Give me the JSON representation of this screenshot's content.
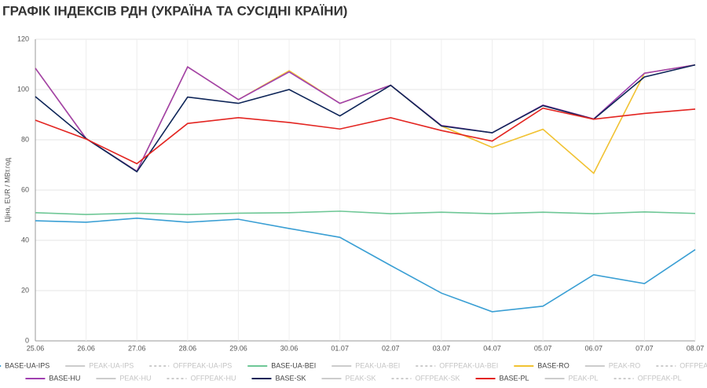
{
  "chart_data": {
    "type": "line",
    "title": "ГРАФІК ІНДЕКСІВ РДН (УКРАЇНА ТА СУСІДНІ КРАЇНИ)",
    "y_label": "Ціна, EUR / МВт.год",
    "categories": [
      "25.06",
      "26.06",
      "27.06",
      "28.06",
      "29.06",
      "30.06",
      "01.07",
      "02.07",
      "03.07",
      "04.07",
      "05.07",
      "06.07",
      "07.07",
      "08.07"
    ],
    "ylim": [
      0,
      120
    ],
    "yticks": [
      0,
      20,
      40,
      60,
      80,
      100,
      120
    ],
    "grid": true,
    "series": [
      {
        "name": "BASE-UA-IPS",
        "color": "#3a9fd4",
        "values": [
          47.8,
          47.2,
          48.8,
          47.2,
          48.4,
          44.7,
          41.2,
          30,
          19,
          11.6,
          13.8,
          26.3,
          22.8,
          36.3
        ]
      },
      {
        "name": "PEAK-UA-IPS",
        "color": "#cccccc",
        "hidden": true,
        "dash": false,
        "values": [
          null,
          null,
          null,
          null,
          null,
          null,
          null,
          null,
          null,
          null,
          null,
          null,
          null,
          null
        ]
      },
      {
        "name": "OFFPEAK-UA-IPS",
        "color": "#cccccc",
        "hidden": true,
        "dash": true,
        "values": [
          null,
          null,
          null,
          null,
          null,
          null,
          null,
          null,
          null,
          null,
          null,
          null,
          null,
          null
        ]
      },
      {
        "name": "BASE-UA-BEI",
        "color": "#6ec796",
        "values": [
          51,
          50.3,
          50.8,
          50.3,
          50.8,
          51,
          51.6,
          50.6,
          51.2,
          50.6,
          51.2,
          50.6,
          51.3,
          50.7
        ]
      },
      {
        "name": "PEAK-UA-BEI",
        "color": "#cccccc",
        "hidden": true,
        "dash": false,
        "values": [
          null,
          null,
          null,
          null,
          null,
          null,
          null,
          null,
          null,
          null,
          null,
          null,
          null,
          null
        ]
      },
      {
        "name": "OFFPEAK-UA-BEI",
        "color": "#cccccc",
        "hidden": true,
        "dash": true,
        "values": [
          null,
          null,
          null,
          null,
          null,
          null,
          null,
          null,
          null,
          null,
          null,
          null,
          null,
          null
        ]
      },
      {
        "name": "BASE-RO",
        "color": "#f1c232",
        "values": [
          108.5,
          80.5,
          67.5,
          109,
          96,
          107.5,
          94.5,
          101.7,
          85.5,
          77,
          84.2,
          66.7,
          106.5,
          109.8
        ]
      },
      {
        "name": "PEAK-RO",
        "color": "#cccccc",
        "hidden": true,
        "dash": false,
        "values": [
          null,
          null,
          null,
          null,
          null,
          null,
          null,
          null,
          null,
          null,
          null,
          null,
          null,
          null
        ]
      },
      {
        "name": "OFFPEAK-RO",
        "color": "#cccccc",
        "hidden": true,
        "dash": true,
        "values": [
          null,
          null,
          null,
          null,
          null,
          null,
          null,
          null,
          null,
          null,
          null,
          null,
          null,
          null
        ]
      },
      {
        "name": "BASE-HU",
        "color": "#a040b0",
        "values": [
          108.5,
          80.5,
          67.5,
          109,
          96,
          107,
          94.5,
          101.7,
          85.7,
          82.8,
          93.8,
          88.3,
          106.5,
          109.8
        ]
      },
      {
        "name": "PEAK-HU",
        "color": "#cccccc",
        "hidden": true,
        "dash": false,
        "values": [
          null,
          null,
          null,
          null,
          null,
          null,
          null,
          null,
          null,
          null,
          null,
          null,
          null,
          null
        ]
      },
      {
        "name": "OFFPEAK-HU",
        "color": "#cccccc",
        "hidden": true,
        "dash": true,
        "values": [
          null,
          null,
          null,
          null,
          null,
          null,
          null,
          null,
          null,
          null,
          null,
          null,
          null,
          null
        ]
      },
      {
        "name": "BASE-SK",
        "color": "#0e2558",
        "values": [
          97.2,
          80.5,
          67.3,
          97,
          94.5,
          100,
          89.5,
          101.7,
          85.5,
          82.8,
          93.6,
          88.2,
          105,
          109.8
        ]
      },
      {
        "name": "PEAK-SK",
        "color": "#cccccc",
        "hidden": true,
        "dash": false,
        "values": [
          null,
          null,
          null,
          null,
          null,
          null,
          null,
          null,
          null,
          null,
          null,
          null,
          null,
          null
        ]
      },
      {
        "name": "OFFPEAK-SK",
        "color": "#cccccc",
        "hidden": true,
        "dash": true,
        "values": [
          null,
          null,
          null,
          null,
          null,
          null,
          null,
          null,
          null,
          null,
          null,
          null,
          null,
          null
        ]
      },
      {
        "name": "BASE-PL",
        "color": "#e32521",
        "values": [
          87.8,
          80.3,
          70.5,
          86.5,
          88.8,
          86.9,
          84.3,
          88.8,
          83.7,
          79.5,
          92.6,
          88.2,
          90.5,
          92.2
        ]
      },
      {
        "name": "PEAK-PL",
        "color": "#cccccc",
        "hidden": true,
        "dash": false,
        "values": [
          null,
          null,
          null,
          null,
          null,
          null,
          null,
          null,
          null,
          null,
          null,
          null,
          null,
          null
        ]
      },
      {
        "name": "OFFPEAK-PL",
        "color": "#cccccc",
        "hidden": true,
        "dash": true,
        "values": [
          null,
          null,
          null,
          null,
          null,
          null,
          null,
          null,
          null,
          null,
          null,
          null,
          null,
          null
        ]
      }
    ]
  }
}
